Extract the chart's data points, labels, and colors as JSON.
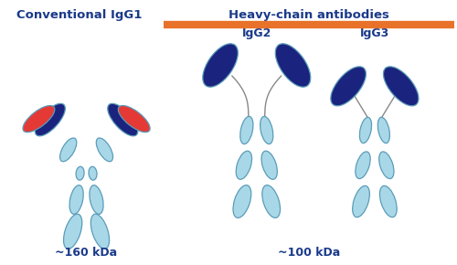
{
  "bg_color": "#ffffff",
  "title_left": "Conventional IgG1",
  "title_right": "Heavy-chain antibodies",
  "label_igg2": "IgG2",
  "label_igg3": "IgG3",
  "mass_left": "~160 kDa",
  "mass_right": "~100 kDa",
  "text_color": "#1a3a8a",
  "light_blue": "#a8d8e8",
  "dark_blue": "#1a237e",
  "red": "#e53935",
  "orange_bar": "#e8722a",
  "edge_color": "#5b9cb8",
  "line_color": "#888888",
  "title_fontsize": 9.5,
  "label_fontsize": 9,
  "mass_fontsize": 9
}
